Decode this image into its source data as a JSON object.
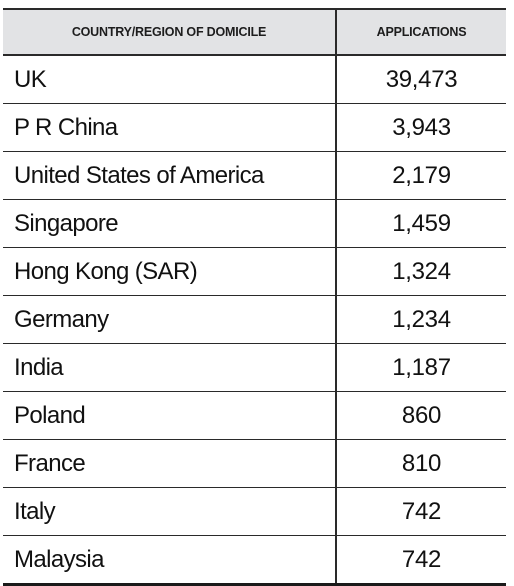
{
  "table": {
    "headers": {
      "country": "COUNTRY/REGION OF DOMICILE",
      "applications": "APPLICATIONS"
    },
    "rows": [
      {
        "country": "UK",
        "applications": "39,473"
      },
      {
        "country": "P R China",
        "applications": "3,943"
      },
      {
        "country": "United States of America",
        "applications": "2,179"
      },
      {
        "country": "Singapore",
        "applications": "1,459"
      },
      {
        "country": "Hong Kong (SAR)",
        "applications": "1,324"
      },
      {
        "country": "Germany",
        "applications": "1,234"
      },
      {
        "country": "India",
        "applications": "1,187"
      },
      {
        "country": "Poland",
        "applications": "860"
      },
      {
        "country": "France",
        "applications": "810"
      },
      {
        "country": "Italy",
        "applications": "742"
      },
      {
        "country": "Malaysia",
        "applications": "742"
      }
    ]
  },
  "colors": {
    "header_background": "#e2e3e5",
    "rule": "#2a2a2a",
    "text": "#111111"
  }
}
